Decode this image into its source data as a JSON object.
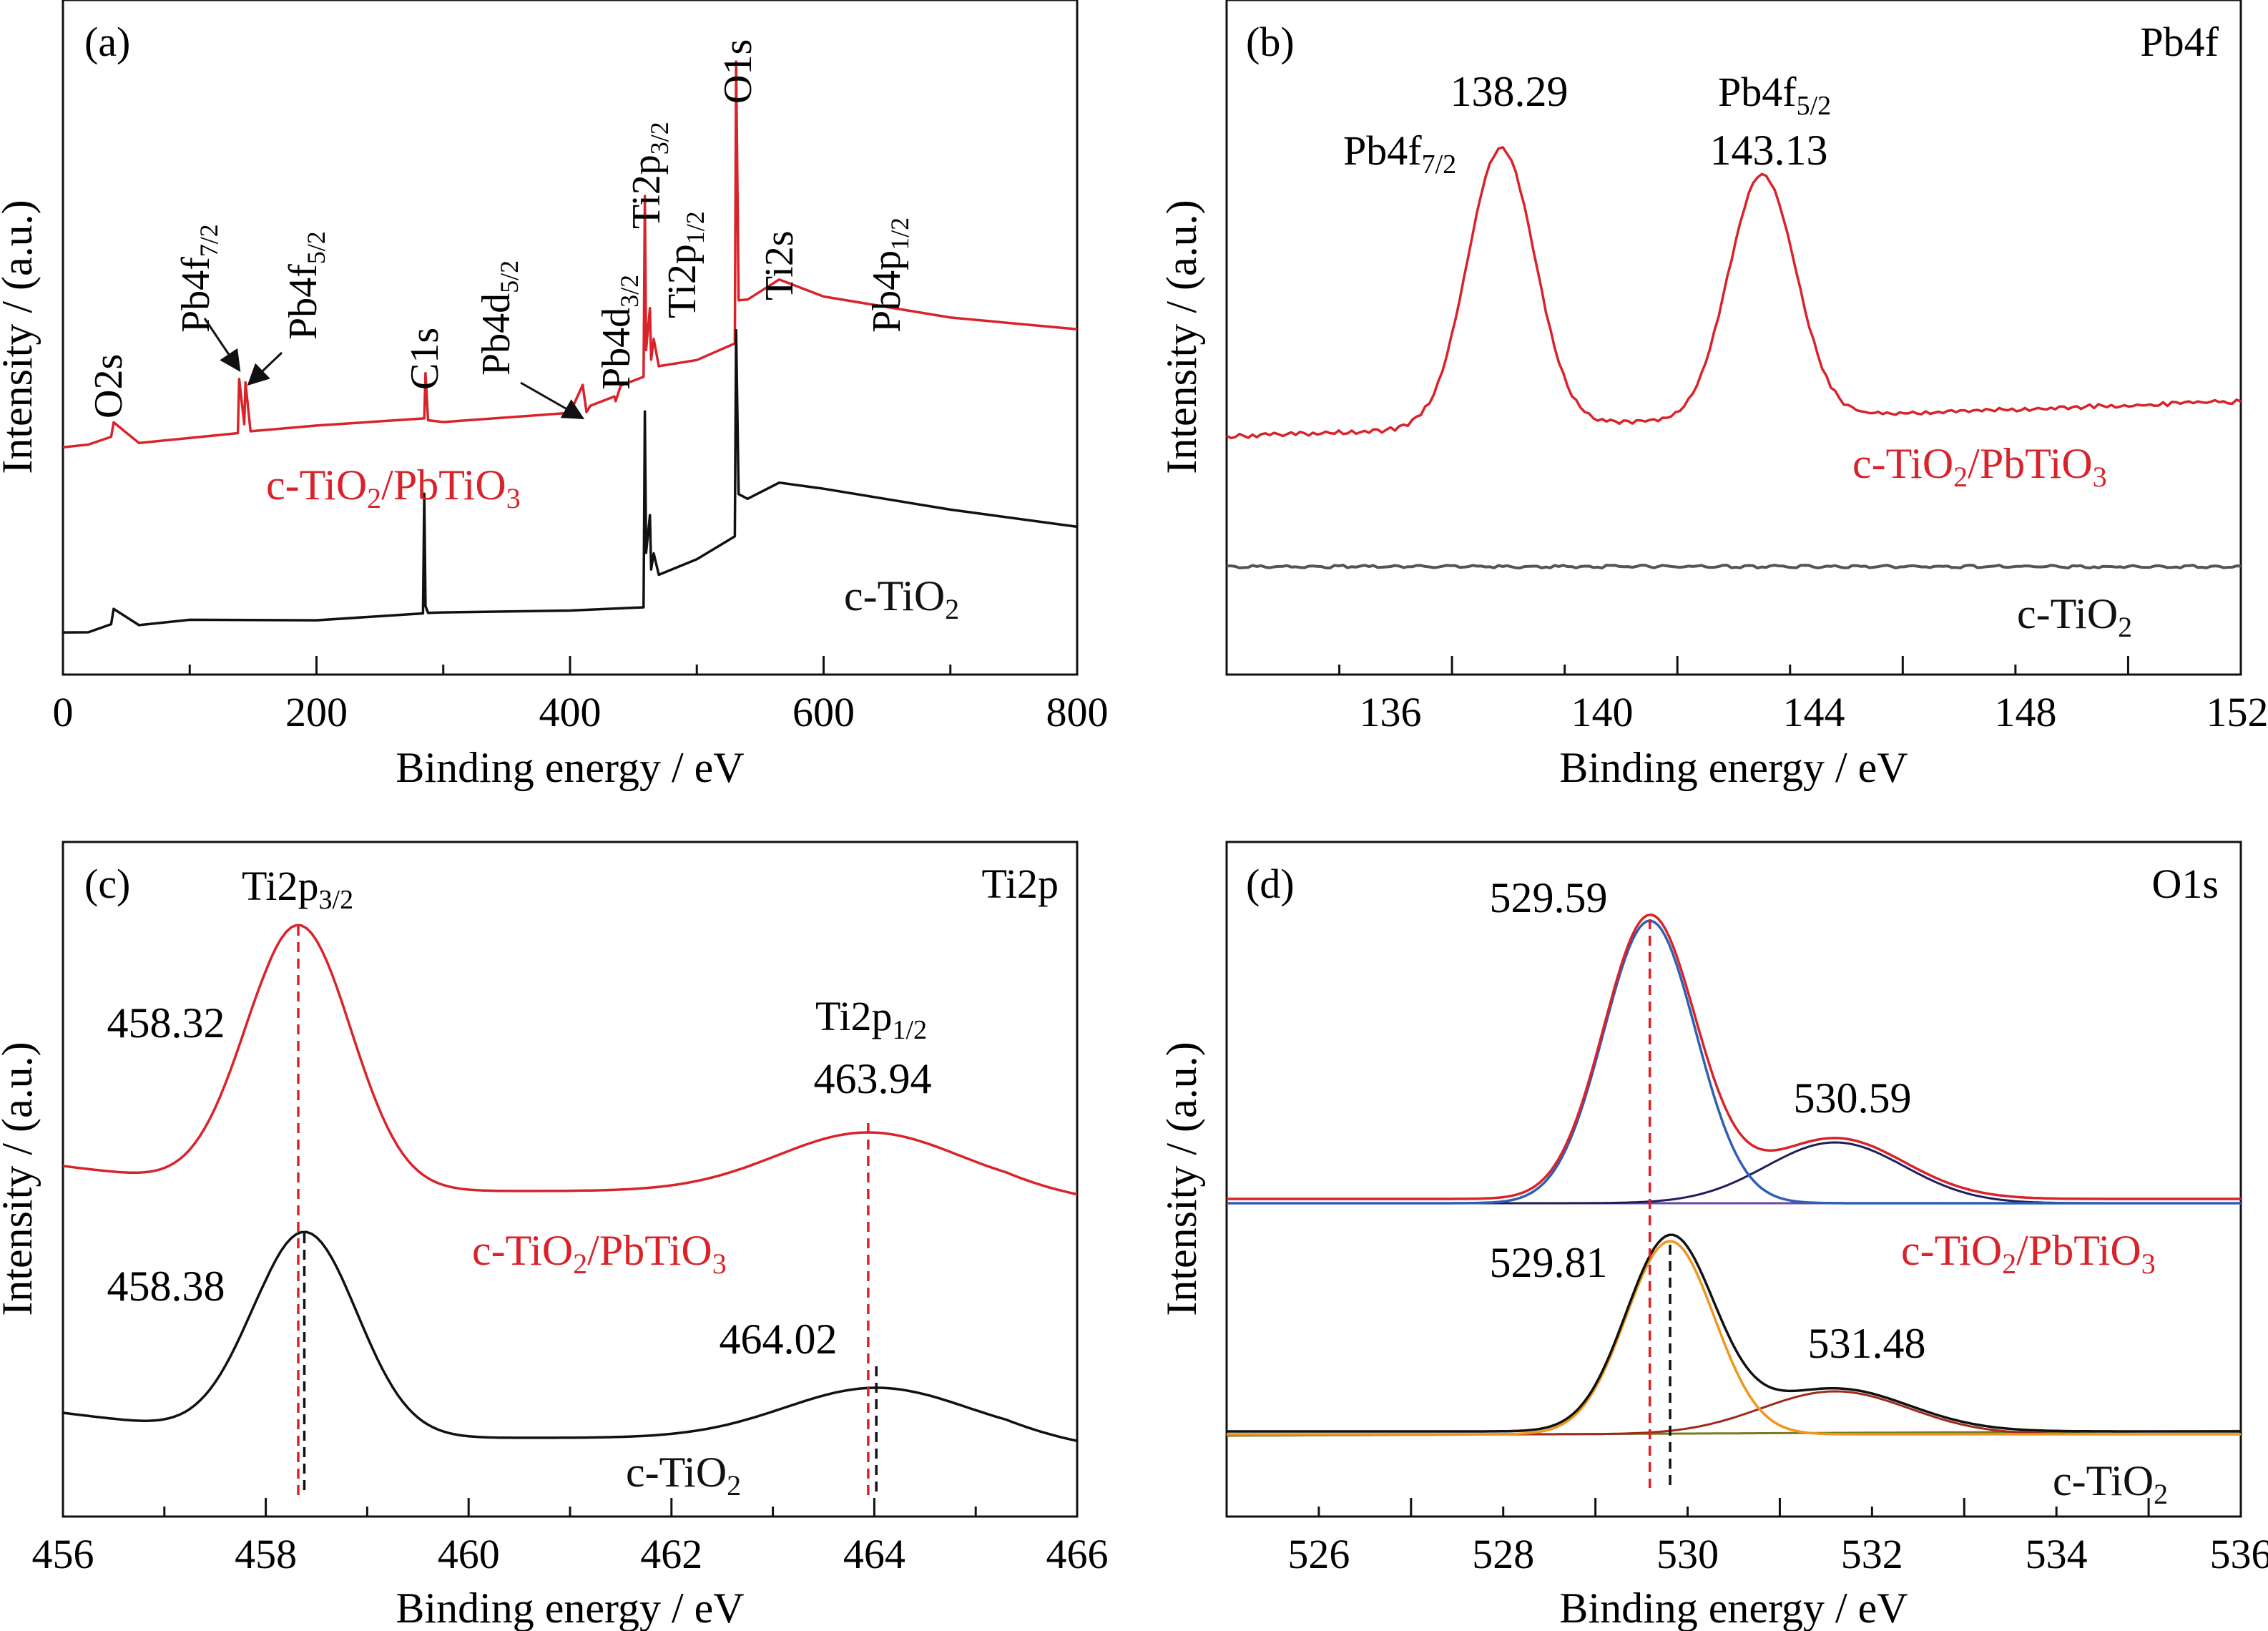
{
  "colors": {
    "red": "#d9232b",
    "black": "#111111",
    "gray": "#555555",
    "blue": "#2f5fb3",
    "navy": "#1e1e5a",
    "orange": "#f0961e",
    "brown": "#9e2a1e",
    "olive": "#7a7a1e",
    "violet": "#6a4aa8"
  },
  "chart_data": [
    {
      "type": "line",
      "panel": "(a)",
      "xlabel": "Binding energy / eV",
      "ylabel": "Intensity / (a.u.)",
      "xlim": [
        0,
        800
      ],
      "xticks": [
        "0",
        "200",
        "400",
        "600",
        "800"
      ],
      "y_unit": "arbitrary",
      "series": [
        {
          "name": "c-TiO₂/PbTiO₃",
          "color": "red",
          "x": [
            0,
            20,
            38,
            40,
            60,
            100,
            138,
            139,
            143,
            144,
            148,
            200,
            285,
            286,
            288,
            300,
            400,
            410,
            413,
            416,
            435,
            436,
            440,
            458,
            459,
            460,
            463,
            464,
            466,
            470,
            500,
            530,
            531,
            533,
            540,
            565,
            600,
            700,
            800
          ],
          "y": [
            2,
            3,
            4,
            7,
            3,
            4,
            5,
            15,
            6,
            14,
            5,
            6,
            7,
            16,
            7,
            7,
            9,
            14,
            9,
            10,
            12,
            11,
            14,
            15,
            49,
            20,
            28,
            18,
            22,
            17,
            19,
            22,
            75,
            30,
            30,
            34,
            31,
            27,
            24
          ]
        },
        {
          "name": "c-TiO₂",
          "color": "black",
          "x": [
            0,
            20,
            38,
            40,
            60,
            100,
            200,
            284,
            285,
            286,
            288,
            300,
            400,
            458,
            459,
            460,
            463,
            464,
            466,
            470,
            500,
            530,
            531,
            533,
            540,
            565,
            600,
            700,
            800
          ],
          "y": [
            0.5,
            1,
            2,
            5,
            2,
            3,
            3,
            4,
            25,
            5,
            4,
            4,
            4,
            5,
            40,
            15,
            22,
            12,
            15,
            11,
            14,
            18,
            55,
            25,
            24,
            27,
            26,
            22,
            19
          ]
        }
      ],
      "annotations": [
        "O2s",
        "Pb4f7/2",
        "Pb4f5/2",
        "C1s",
        "Pb4d5/2",
        "Pb4d3/2",
        "Ti2p3/2",
        "Ti2p1/2",
        "O1s",
        "Ti2s",
        "Pb4p1/2"
      ]
    },
    {
      "type": "line",
      "panel": "(b)",
      "element_label": "Pb4f",
      "xlabel": "Binding energy / eV",
      "ylabel": "Intensity / (a.u.)",
      "xlim": [
        133.2,
        152
      ],
      "xticks": [
        "136",
        "140",
        "144",
        "148",
        "152"
      ],
      "y_unit": "arbitrary",
      "series": [
        {
          "name": "c-TiO₂/PbTiO₃",
          "color": "red",
          "peaks": [
            {
              "center": 138.29,
              "label": "Pb4f7/2"
            },
            {
              "center": 143.13,
              "label": "Pb4f5/2"
            }
          ]
        },
        {
          "name": "c-TiO₂",
          "color": "gray",
          "shape": "flat"
        }
      ],
      "peak_labels": [
        "138.29",
        "143.13"
      ],
      "annotations": [
        "Pb4f7/2",
        "Pb4f5/2"
      ]
    },
    {
      "type": "line",
      "panel": "(c)",
      "element_label": "Ti2p",
      "xlabel": "Binding energy / eV",
      "ylabel": "Intensity / (a.u.)",
      "xlim": [
        456,
        466
      ],
      "xticks": [
        "456",
        "458",
        "460",
        "462",
        "464",
        "466"
      ],
      "y_unit": "arbitrary",
      "series": [
        {
          "name": "c-TiO₂/PbTiO₃",
          "color": "red",
          "peaks": [
            {
              "center": 458.32,
              "label": "Ti2p3/2"
            },
            {
              "center": 463.94,
              "label": "Ti2p1/2"
            }
          ]
        },
        {
          "name": "c-TiO₂",
          "color": "black",
          "peaks": [
            {
              "center": 458.38
            },
            {
              "center": 464.02
            }
          ]
        }
      ],
      "peak_labels": [
        "458.32",
        "463.94",
        "458.38",
        "464.02"
      ],
      "annotations": [
        "Ti2p3/2",
        "Ti2p1/2"
      ]
    },
    {
      "type": "line",
      "panel": "(d)",
      "element_label": "O1s",
      "xlabel": "Binding energy / eV",
      "ylabel": "Intensity / (a.u.)",
      "xlim": [
        525,
        536
      ],
      "xticks": [
        "526",
        "528",
        "530",
        "532",
        "534",
        "536"
      ],
      "y_unit": "arbitrary",
      "series": [
        {
          "name": "c-TiO₂/PbTiO₃",
          "color": "red",
          "components": [
            {
              "center": 529.59,
              "color": "blue"
            },
            {
              "center": 530.59,
              "color": "navy"
            }
          ]
        },
        {
          "name": "c-TiO₂",
          "color": "black",
          "components": [
            {
              "center": 529.81,
              "color": "orange"
            },
            {
              "center": 531.48,
              "color": "brown"
            }
          ]
        }
      ],
      "peak_labels": [
        "529.59",
        "530.59",
        "529.81",
        "531.48"
      ]
    }
  ],
  "labels": {
    "a": {
      "panel": "(a)",
      "xlabel": "Binding energy / eV",
      "ylabel": "Intensity / (a.u.)",
      "s1": "c-TiO",
      "s1sub": "2",
      "s1b": "/PbTiO",
      "s1bsub": "3",
      "s2": "c-TiO",
      "s2sub": "2",
      "o2s": "O2s",
      "pb4f": "Pb4f",
      "f72": "7/2",
      "f52": "5/2",
      "c1s": "C1s",
      "pb4d": "Pb4d",
      "d52": "5/2",
      "d32": "3/2",
      "ti2p": "Ti2p",
      "p32": "3/2",
      "p12": "1/2",
      "o1s": "O1s",
      "ti2s": "Ti2s",
      "pb4p": "Pb4p",
      "pp12": "1/2"
    },
    "b": {
      "panel": "(b)",
      "elem": "Pb4f",
      "xlabel": "Binding energy / eV",
      "ylabel": "Intensity / (a.u.)",
      "v1": "138.29",
      "v2": "143.13",
      "pk1": "Pb4f",
      "pk1sub": "7/2",
      "pk2": "Pb4f",
      "pk2sub": "5/2",
      "s1": "c-TiO",
      "s1sub": "2",
      "s1b": "/PbTiO",
      "s1bsub": "3",
      "s2": "c-TiO",
      "s2sub": "2"
    },
    "c": {
      "panel": "(c)",
      "elem": "Ti2p",
      "xlabel": "Binding energy / eV",
      "ylabel": "Intensity / (a.u.)",
      "v1": "458.32",
      "v2": "463.94",
      "v3": "458.38",
      "v4": "464.02",
      "pk1": "Ti2p",
      "pk1sub": "3/2",
      "pk2": "Ti2p",
      "pk2sub": "1/2",
      "s1": "c-TiO",
      "s1sub": "2",
      "s1b": "/PbTiO",
      "s1bsub": "3",
      "s2": "c-TiO",
      "s2sub": "2"
    },
    "d": {
      "panel": "(d)",
      "elem": "O1s",
      "xlabel": "Binding energy / eV",
      "ylabel": "Intensity / (a.u.)",
      "v1": "529.59",
      "v2": "530.59",
      "v3": "529.81",
      "v4": "531.48",
      "s1": "c-TiO",
      "s1sub": "2",
      "s1b": "/PbTiO",
      "s1bsub": "3",
      "s2": "c-TiO",
      "s2sub": "2"
    }
  }
}
